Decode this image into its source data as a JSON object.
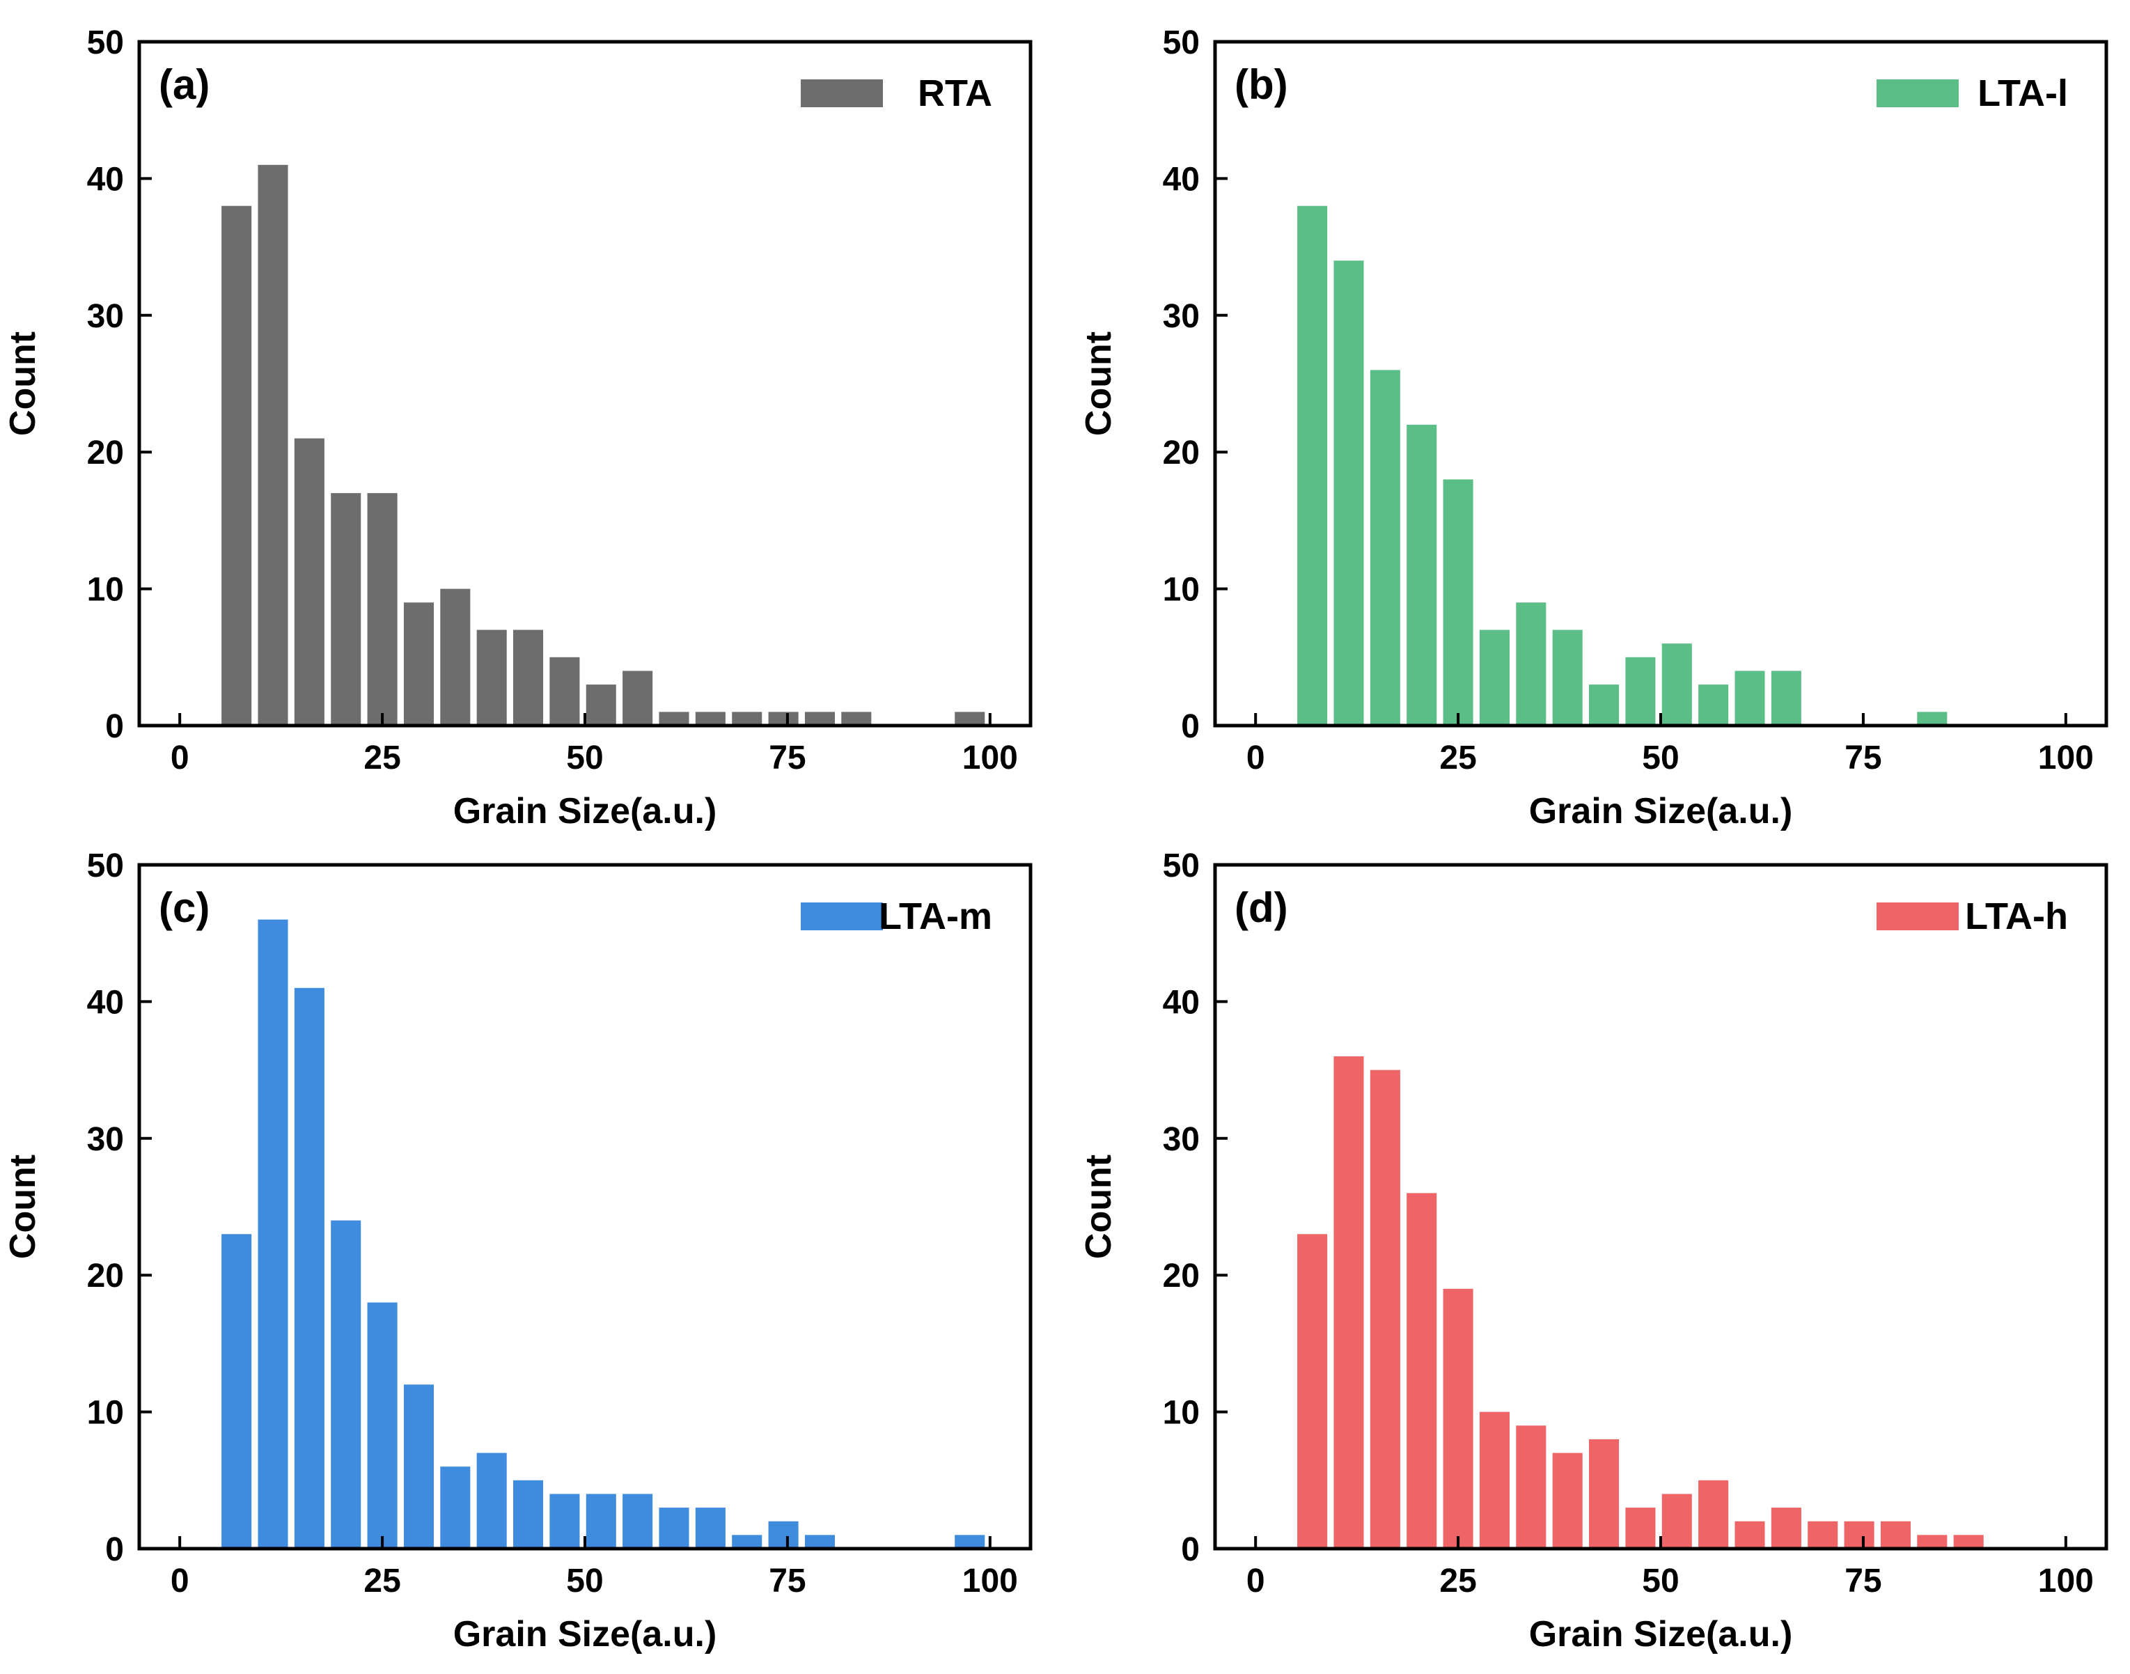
{
  "chart_data": [
    {
      "type": "bar",
      "panel_label": "(a)",
      "legend": "RTA",
      "color": "#6d6d6d",
      "xlabel": "Grain Size(a.u.)",
      "ylabel": "Count",
      "xlim": [
        -5,
        105
      ],
      "ylim": [
        0,
        50
      ],
      "xticks": [
        "0",
        "25",
        "50",
        "75",
        "100"
      ],
      "yticks": [
        "0",
        "10",
        "20",
        "30",
        "40",
        "50"
      ],
      "legend_position": "top-right",
      "x": [
        7,
        11.5,
        16,
        20.5,
        25,
        29.5,
        34,
        38.5,
        43,
        47.5,
        52,
        56.5,
        61,
        65.5,
        70,
        74.5,
        79,
        83.5,
        97.5
      ],
      "values": [
        38,
        41,
        21,
        17,
        17,
        9,
        10,
        7,
        7,
        5,
        3,
        4,
        1,
        1,
        1,
        1,
        1,
        1,
        1
      ]
    },
    {
      "type": "bar",
      "panel_label": "(b)",
      "legend": "LTA-l",
      "color": "#5cbe87",
      "xlabel": "Grain Size(a.u.)",
      "ylabel": "Count",
      "xlim": [
        -5,
        105
      ],
      "ylim": [
        0,
        50
      ],
      "xticks": [
        "0",
        "25",
        "50",
        "75",
        "100"
      ],
      "yticks": [
        "0",
        "10",
        "20",
        "30",
        "40",
        "50"
      ],
      "legend_position": "top-right",
      "x": [
        7,
        11.5,
        16,
        20.5,
        25,
        29.5,
        34,
        38.5,
        43,
        47.5,
        52,
        56.5,
        61,
        65.5,
        83.5
      ],
      "values": [
        38,
        34,
        26,
        22,
        18,
        7,
        9,
        7,
        3,
        5,
        6,
        3,
        4,
        4,
        1
      ]
    },
    {
      "type": "bar",
      "panel_label": "(c)",
      "legend": "LTA-m",
      "color": "#3f8bde",
      "xlabel": "Grain Size(a.u.)",
      "ylabel": "Count",
      "xlim": [
        -5,
        105
      ],
      "ylim": [
        0,
        50
      ],
      "xticks": [
        "0",
        "25",
        "50",
        "75",
        "100"
      ],
      "yticks": [
        "0",
        "10",
        "20",
        "30",
        "40",
        "50"
      ],
      "legend_position": "top-right",
      "x": [
        7,
        11.5,
        16,
        20.5,
        25,
        29.5,
        34,
        38.5,
        43,
        47.5,
        52,
        56.5,
        61,
        65.5,
        70,
        74.5,
        79,
        97.5
      ],
      "values": [
        23,
        46,
        41,
        24,
        18,
        12,
        6,
        7,
        5,
        4,
        4,
        4,
        3,
        3,
        1,
        2,
        1,
        1
      ]
    },
    {
      "type": "bar",
      "panel_label": "(d)",
      "legend": "LTA-h",
      "color": "#ef6466",
      "xlabel": "Grain Size(a.u.)",
      "ylabel": "Count",
      "xlim": [
        -5,
        105
      ],
      "ylim": [
        0,
        50
      ],
      "xticks": [
        "0",
        "25",
        "50",
        "75",
        "100"
      ],
      "yticks": [
        "0",
        "10",
        "20",
        "30",
        "40",
        "50"
      ],
      "legend_position": "top-right",
      "x": [
        7,
        11.5,
        16,
        20.5,
        25,
        29.5,
        34,
        38.5,
        43,
        47.5,
        52,
        56.5,
        61,
        65.5,
        70,
        74.5,
        79,
        83.5,
        88
      ],
      "values": [
        23,
        36,
        35,
        26,
        19,
        10,
        9,
        7,
        8,
        3,
        4,
        5,
        2,
        3,
        2,
        2,
        2,
        1,
        1
      ]
    }
  ]
}
